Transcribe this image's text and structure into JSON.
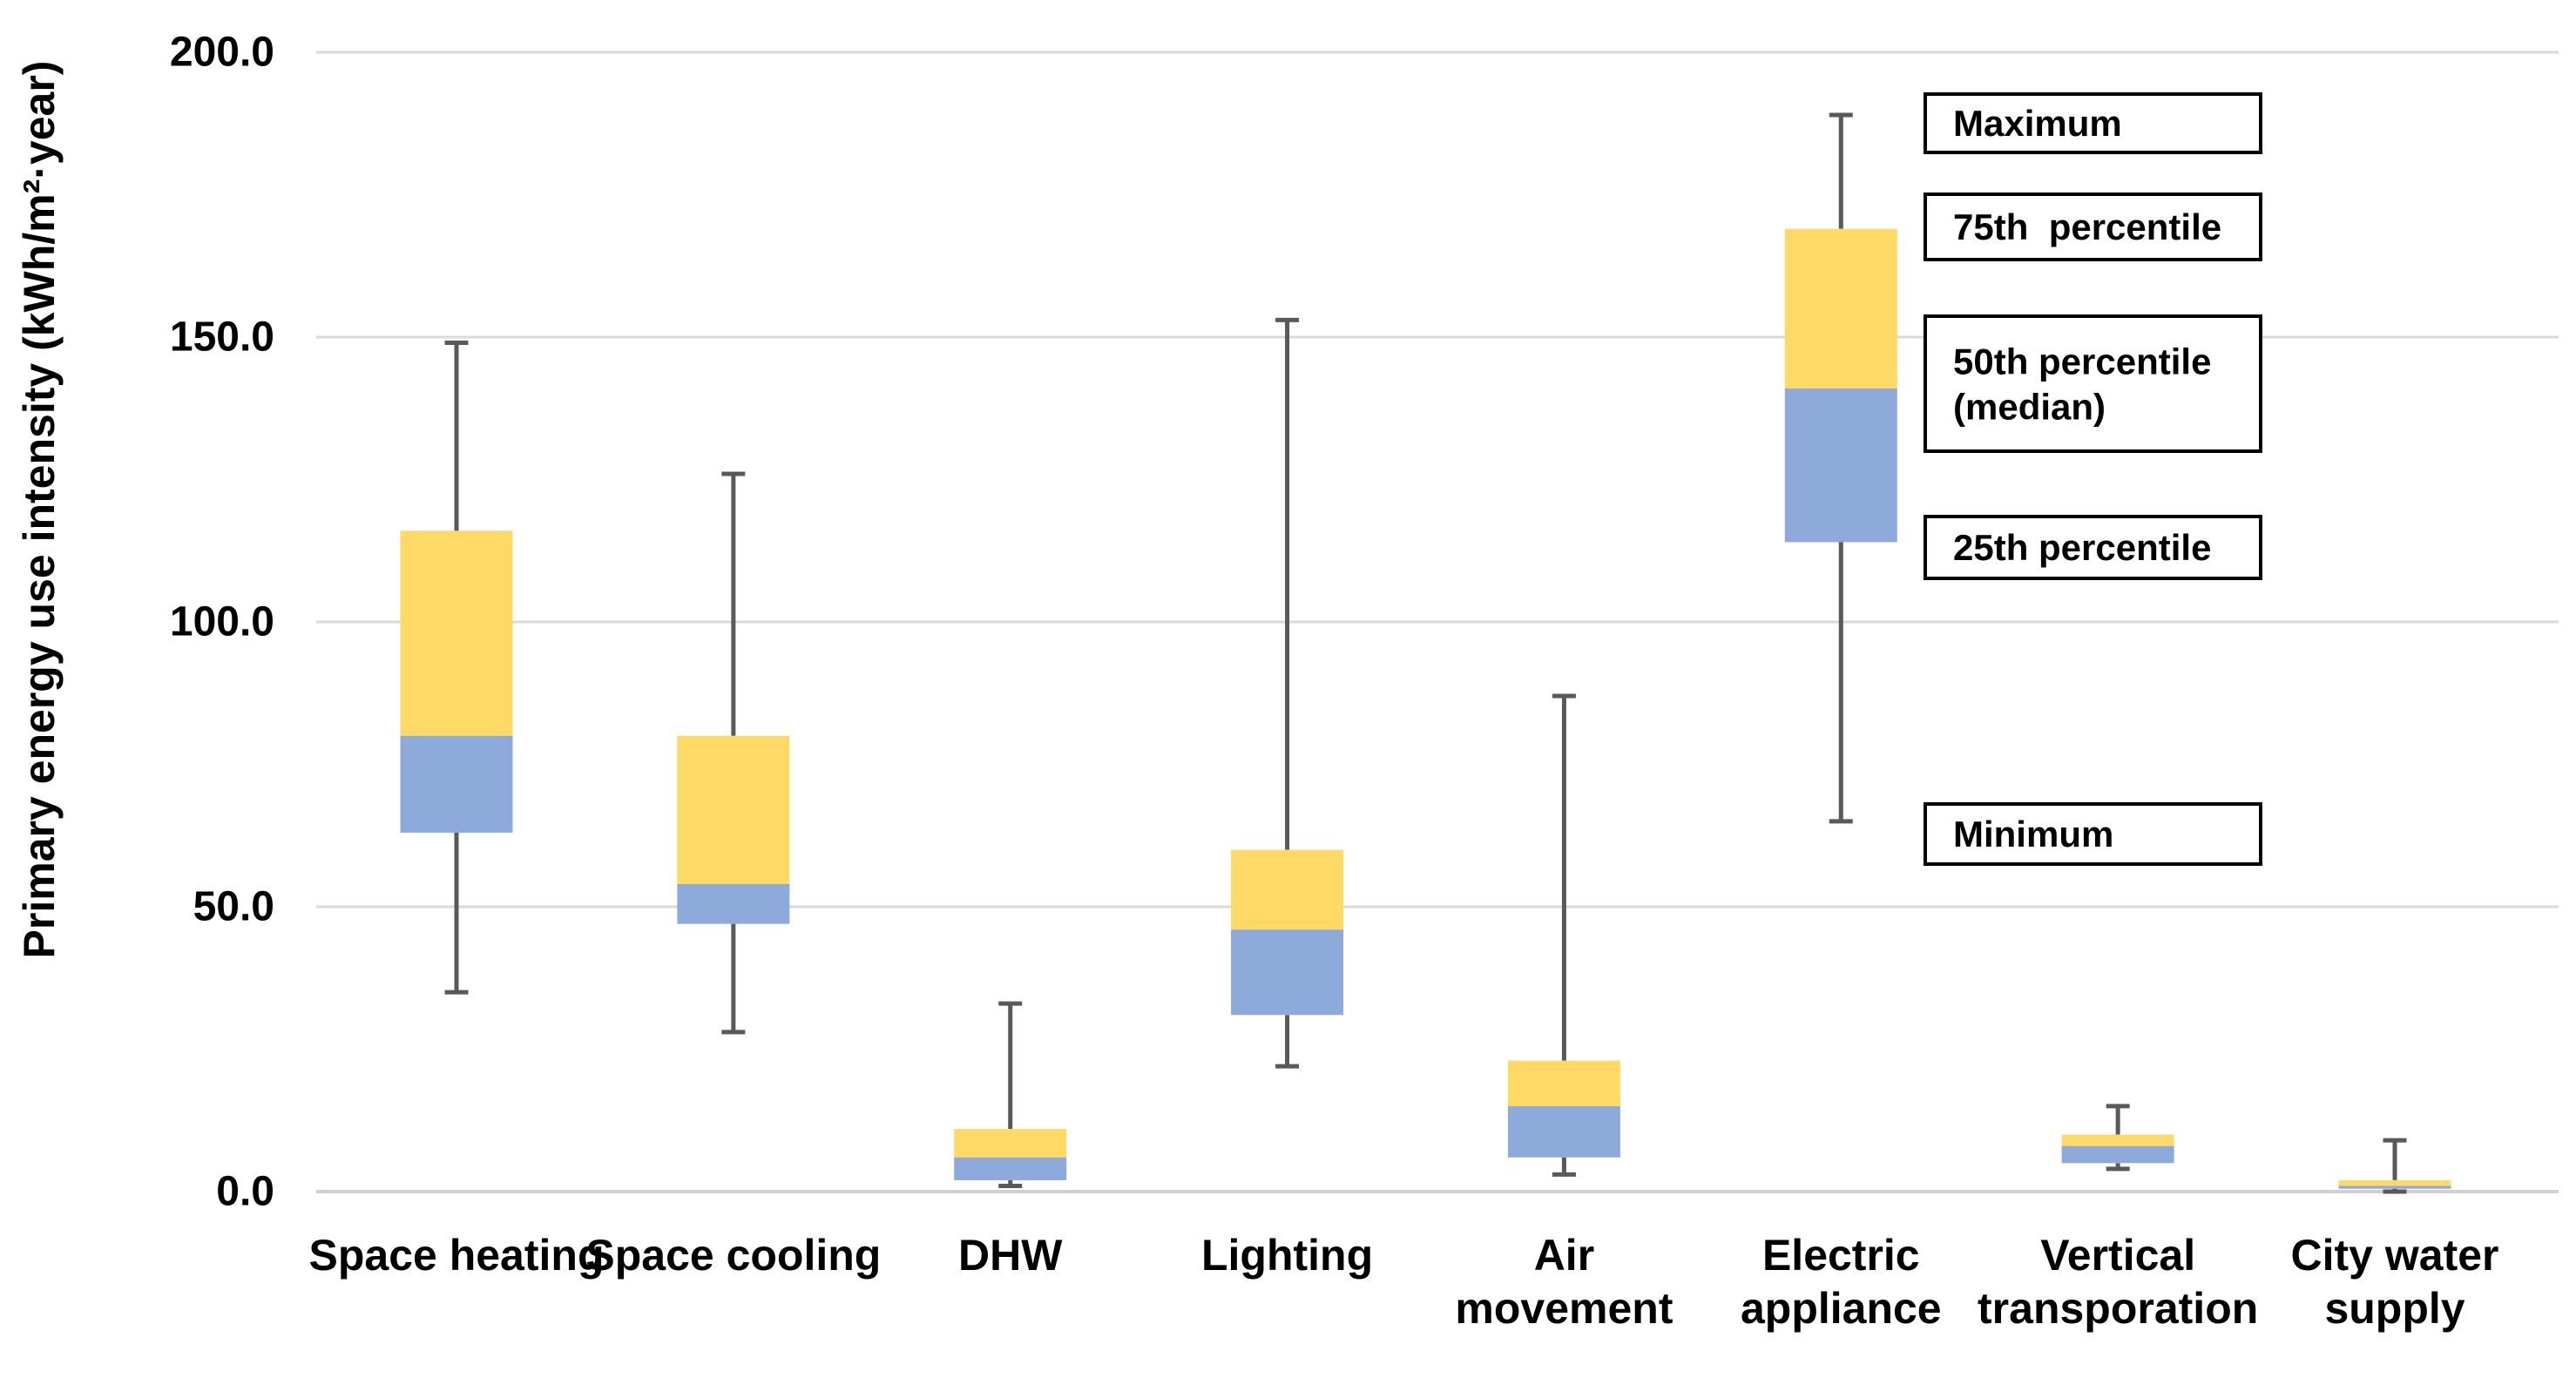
{
  "chart_data": {
    "type": "boxplot",
    "title": "",
    "ylabel": "Primary energy use intensity (kWh/m²·year)",
    "xlabel": "",
    "ylim": [
      0,
      200
    ],
    "grid": true,
    "legend_position": "inside-upper-right",
    "y_ticks": [
      {
        "value": 0,
        "label": "0.0"
      },
      {
        "value": 50,
        "label": "50.0"
      },
      {
        "value": 100,
        "label": "100.0"
      },
      {
        "value": 150,
        "label": "150.0"
      },
      {
        "value": 200,
        "label": "200.0"
      }
    ],
    "categories": [
      {
        "label_lines": [
          "Space heating"
        ],
        "min": 35,
        "q1": 63,
        "median": 80,
        "q3": 116,
        "max": 149
      },
      {
        "label_lines": [
          "Space cooling"
        ],
        "min": 28,
        "q1": 47,
        "median": 54,
        "q3": 80,
        "max": 126
      },
      {
        "label_lines": [
          "DHW"
        ],
        "min": 1,
        "q1": 2,
        "median": 6,
        "q3": 11,
        "max": 33
      },
      {
        "label_lines": [
          "Lighting"
        ],
        "min": 22,
        "q1": 31,
        "median": 46,
        "q3": 60,
        "max": 153
      },
      {
        "label_lines": [
          "Air",
          "movement"
        ],
        "min": 3,
        "q1": 6,
        "median": 15,
        "q3": 23,
        "max": 87
      },
      {
        "label_lines": [
          "Electric",
          "appliance"
        ],
        "min": 65,
        "q1": 114,
        "median": 141,
        "q3": 169,
        "max": 189
      },
      {
        "label_lines": [
          "Vertical",
          "transporation"
        ],
        "min": 4,
        "q1": 5,
        "median": 8,
        "q3": 10,
        "max": 15
      },
      {
        "label_lines": [
          "City water",
          "supply"
        ],
        "min": 0,
        "q1": 0.5,
        "median": 1,
        "q3": 2,
        "max": 9
      }
    ],
    "legend_items": [
      {
        "label_lines": [
          "Maximum"
        ]
      },
      {
        "label_lines": [
          "75th  percentile"
        ]
      },
      {
        "label_lines": [
          "50th percentile",
          "(median)"
        ]
      },
      {
        "label_lines": [
          "25th percentile"
        ]
      },
      {
        "label_lines": [
          "Minimum"
        ]
      }
    ],
    "colors": {
      "upper_box": "#FFD966",
      "lower_box": "#8EAADB",
      "whisker": "#595959",
      "gridline": "#D9D9D9",
      "axis_line": "#D0D0D0",
      "text": "#000000",
      "legend_border": "#000000",
      "legend_fill": "#FFFFFF",
      "background": "#FFFFFF"
    }
  }
}
